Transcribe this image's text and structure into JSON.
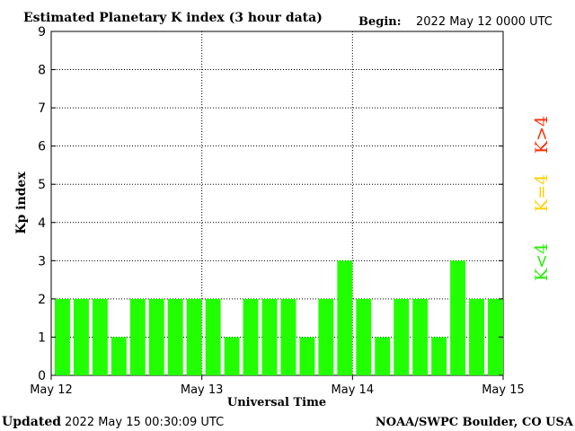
{
  "header": {
    "title": "Estimated Planetary K index (3 hour data)",
    "begin_label": "Begin:",
    "begin_value": "2022 May 12 0000 UTC"
  },
  "footer": {
    "updated_label": "Updated",
    "updated_value": "2022 May 15 00:30:09 UTC",
    "credit": "NOAA/SWPC Boulder, CO USA"
  },
  "legend": {
    "high": "K>4",
    "equal": "K=4",
    "low": "K<4",
    "colors": {
      "high": "#ff2a00",
      "equal": "#ffd000",
      "low": "#22ee00"
    }
  },
  "chart_data": {
    "type": "bar",
    "xlabel": "Universal Time",
    "ylabel": "Kp index",
    "ylim": [
      0,
      9
    ],
    "y_ticks": [
      "0",
      "1",
      "2",
      "3",
      "4",
      "5",
      "6",
      "7",
      "8",
      "9"
    ],
    "x_ticks": [
      "May 12",
      "May 13",
      "May 14",
      "May 15"
    ],
    "grid": true,
    "bar_color": "#22ff00",
    "values": [
      2,
      2,
      2,
      1,
      2,
      2,
      2,
      2,
      2,
      1,
      2,
      2,
      2,
      1,
      2,
      3,
      2,
      1,
      2,
      2,
      1,
      3,
      2,
      2
    ]
  }
}
